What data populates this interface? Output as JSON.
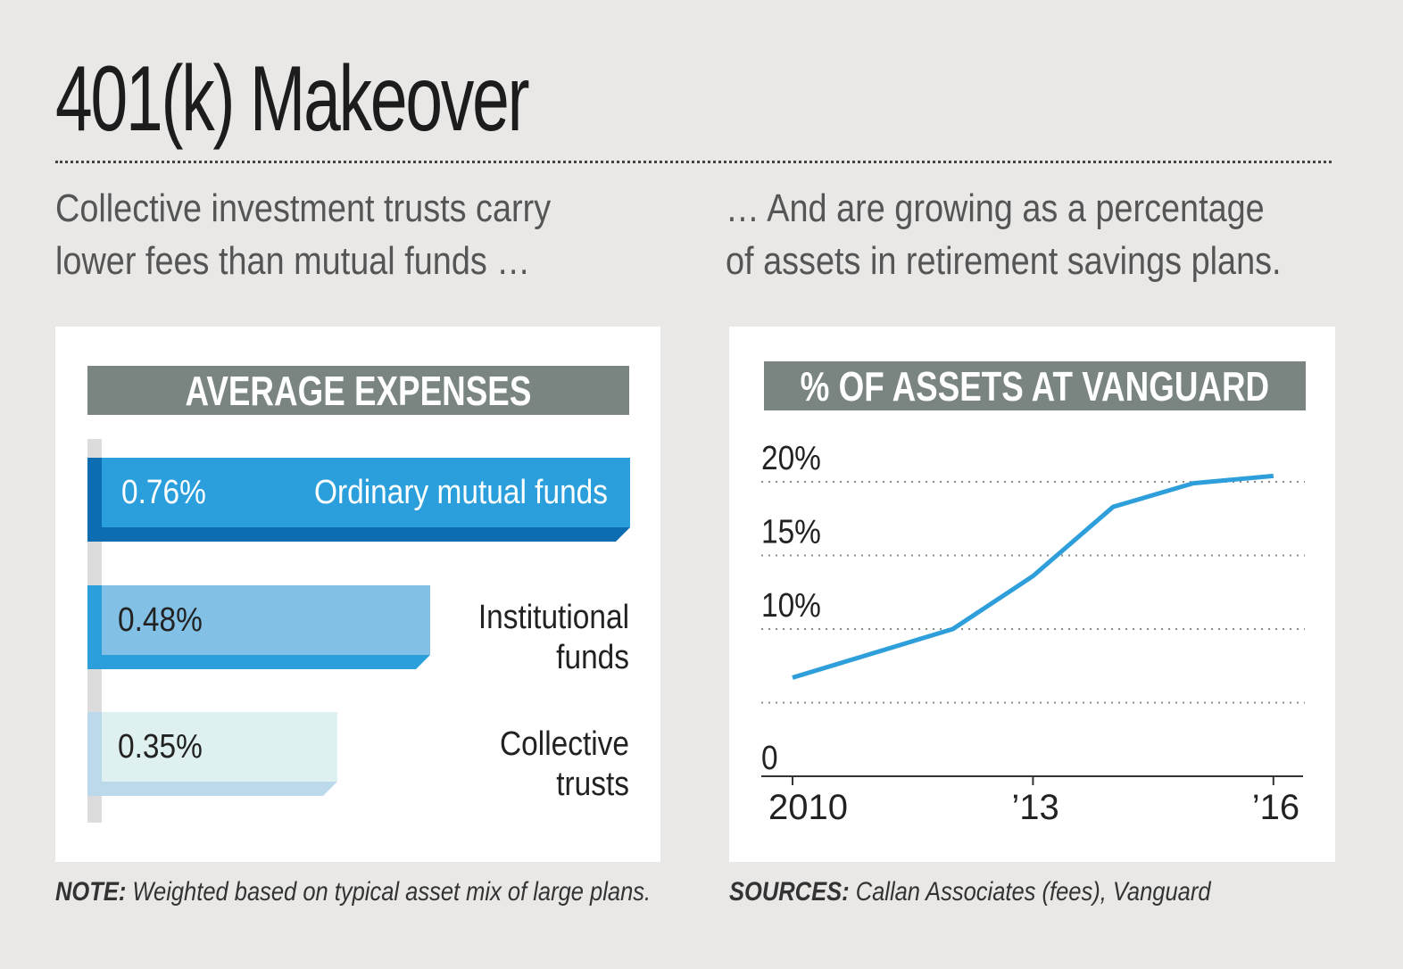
{
  "title": "401(k) Makeover",
  "left_subtitle": [
    "Collective investment trusts carry",
    "lower fees than mutual funds …"
  ],
  "right_subtitle": [
    "… And are growing as a percentage",
    "of assets in retirement savings plans."
  ],
  "note": {
    "label": "NOTE:",
    "text": " Weighted based on typical asset mix of large plans."
  },
  "sources": {
    "label": "SOURCES:",
    "text": " Callan Associates (fees), Vanguard"
  },
  "chart_data": [
    {
      "type": "bar",
      "title": "AVERAGE EXPENSES",
      "orientation": "horizontal",
      "categories": [
        "Ordinary mutual funds",
        "Institutional funds",
        "Collective trusts"
      ],
      "values": [
        0.76,
        0.48,
        0.35
      ],
      "value_labels": [
        "0.76%",
        "0.48%",
        "0.35%"
      ],
      "colors": [
        "#2a9fdc",
        "#82c1e5",
        "#def0ef"
      ],
      "shadow_colors": [
        "#0d6db3",
        "#2a9fdc",
        "#bcd9ec"
      ]
    },
    {
      "type": "line",
      "title": "% OF ASSETS AT VANGUARD",
      "x": [
        2010,
        2012,
        2013,
        2014,
        2015,
        2016
      ],
      "y": [
        6.7,
        10.0,
        13.6,
        18.3,
        19.9,
        20.4
      ],
      "ylim": [
        0,
        20
      ],
      "yticks": [
        0,
        5,
        10,
        15,
        20
      ],
      "ytick_labels": [
        "0",
        "",
        "10%",
        "15%",
        "20%"
      ],
      "xticks": [
        2010,
        2013,
        2016
      ],
      "xtick_labels": [
        "2010",
        "’13",
        "’16"
      ],
      "grid": "dotted horizontal",
      "color": "#2e9fdb"
    }
  ]
}
